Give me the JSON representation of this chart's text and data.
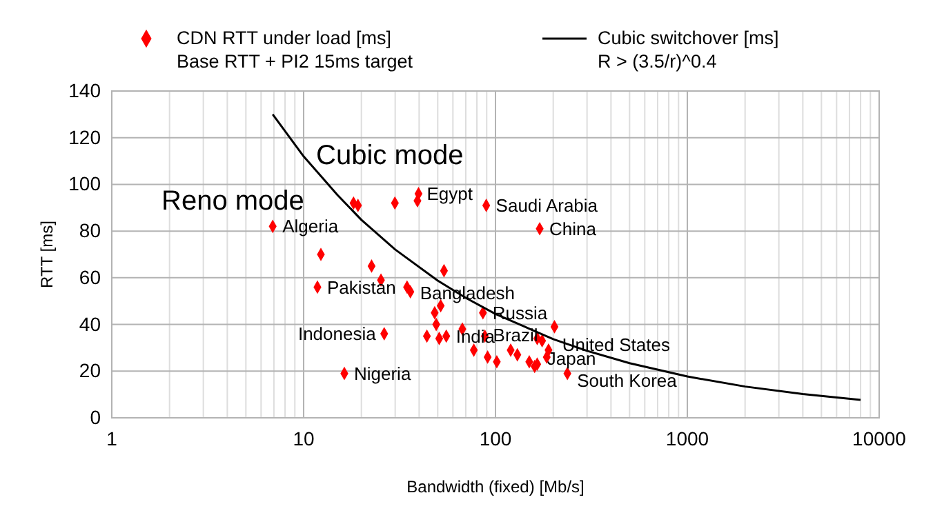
{
  "chart_data": {
    "type": "scatter",
    "xlabel": "Bandwidth (fixed) [Mb/s]",
    "ylabel": "RTT [ms]",
    "log": "x",
    "grid": true,
    "legend": "top",
    "xlim": [
      1,
      10000
    ],
    "xticks": [
      1,
      10,
      100,
      1000,
      10000
    ],
    "ylim": [
      0,
      140
    ],
    "yticks": [
      0,
      20,
      40,
      60,
      80,
      100,
      120,
      140
    ],
    "series": [
      {
        "name": "CDN RTT under load [ms]\nBase RTT + PI2 15ms target",
        "marker": "diamond",
        "color": "#ff0000",
        "x": [
          6.9,
          18.2,
          19.2,
          29.9,
          39.7,
          39.2,
          12.3,
          22.6,
          53.9,
          25.3,
          11.8,
          34.6,
          36,
          51.8,
          48.2,
          86,
          49.1,
          67.2,
          26.3,
          43.9,
          50.9,
          55.4,
          77.1,
          91,
          101.6,
          120,
          130,
          16.3,
          89.5,
          170,
          88,
          165,
          175,
          203,
          189,
          185,
          150,
          160,
          165,
          237
        ],
        "values": [
          82,
          92,
          91,
          92,
          96,
          93,
          70,
          65,
          63,
          59,
          56,
          56,
          54,
          48,
          45,
          45,
          40,
          38,
          36,
          35,
          34,
          35,
          29,
          26,
          24,
          29,
          27,
          19,
          91,
          81,
          35,
          34,
          33,
          39,
          29,
          26,
          24,
          22,
          23,
          19
        ]
      },
      {
        "name": "Cubic switchover [ms]\nR > (3.5/r)^0.4",
        "type": "line",
        "marker": "none",
        "line_style": "solid",
        "color": "#000000",
        "x": [
          6.9,
          10,
          15,
          20,
          30,
          50,
          70,
          100,
          200,
          300,
          500,
          1000,
          2000,
          4000,
          8000
        ],
        "values": [
          130,
          112,
          95.5,
          84.8,
          72.1,
          58.8,
          51.4,
          44.5,
          33.7,
          28.7,
          23.4,
          17.7,
          13.4,
          10.2,
          7.7
        ]
      }
    ],
    "annotations": [
      {
        "text": "Algeria",
        "x": 6.9,
        "y": 82
      },
      {
        "text": "Egypt",
        "x": 39.7,
        "y": 96
      },
      {
        "text": "Saudi Arabia",
        "x": 89.5,
        "y": 91
      },
      {
        "text": "China",
        "x": 170,
        "y": 81
      },
      {
        "text": "Pakistan",
        "x": 11.8,
        "y": 56
      },
      {
        "text": "Bangladesh",
        "x": 36,
        "y": 54
      },
      {
        "text": "Russia",
        "x": 86,
        "y": 45
      },
      {
        "text": "Indonesia",
        "x": 26.3,
        "y": 36
      },
      {
        "text": "India",
        "x": 55.4,
        "y": 35
      },
      {
        "text": "Brazil",
        "x": 88,
        "y": 35
      },
      {
        "text": "United States",
        "x": 189,
        "y": 29
      },
      {
        "text": "Japan",
        "x": 160,
        "y": 22
      },
      {
        "text": "South Korea",
        "x": 237,
        "y": 19
      },
      {
        "text": "Nigeria",
        "x": 16.3,
        "y": 19
      },
      "Cubic mode",
      "Reno mode"
    ]
  }
}
